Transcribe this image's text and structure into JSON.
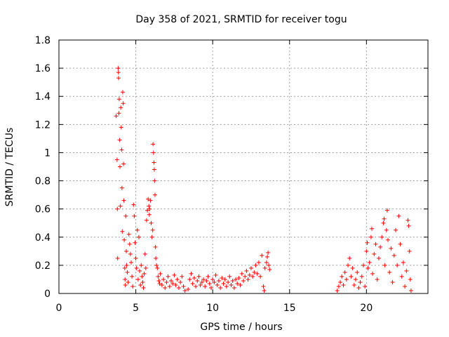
{
  "chart_data": {
    "type": "scatter",
    "title": "Day 358 of 2021, SRMTID for receiver togu",
    "xlabel": "GPS time / hours",
    "ylabel": "SRMTID / TECUs",
    "xlim": [
      0,
      24
    ],
    "ylim": [
      0,
      1.8
    ],
    "grid": true,
    "marker": "+",
    "color": "#ff0000",
    "x_ticks": [
      0,
      5,
      10,
      15,
      20
    ],
    "x_tick_labels": [
      "0",
      "5",
      "10",
      "15",
      "20"
    ],
    "y_ticks": [
      0,
      0.2,
      0.4,
      0.6,
      0.8,
      1.0,
      1.2,
      1.4,
      1.6,
      1.8
    ],
    "y_tick_labels": [
      "0",
      "0.2",
      "0.4",
      "0.6",
      "0.8",
      "1",
      "1.2",
      "1.4",
      "1.6",
      "1.8"
    ],
    "points": [
      [
        3.72,
        1.26
      ],
      [
        3.78,
        0.95
      ],
      [
        3.8,
        0.6
      ],
      [
        3.82,
        0.25
      ],
      [
        3.85,
        1.6
      ],
      [
        3.87,
        1.57
      ],
      [
        3.88,
        1.53
      ],
      [
        3.9,
        1.28
      ],
      [
        3.92,
        1.38
      ],
      [
        3.95,
        1.09
      ],
      [
        3.97,
        0.9
      ],
      [
        4.0,
        0.62
      ],
      [
        4.02,
        1.32
      ],
      [
        4.05,
        1.18
      ],
      [
        4.08,
        1.02
      ],
      [
        4.1,
        0.75
      ],
      [
        4.12,
        0.44
      ],
      [
        4.15,
        1.43
      ],
      [
        4.18,
        1.35
      ],
      [
        4.2,
        0.92
      ],
      [
        4.22,
        0.66
      ],
      [
        4.25,
        0.38
      ],
      [
        4.28,
        0.18
      ],
      [
        4.3,
        0.1
      ],
      [
        4.32,
        0.06
      ],
      [
        4.35,
        0.55
      ],
      [
        4.38,
        0.3
      ],
      [
        4.4,
        0.2
      ],
      [
        4.45,
        0.15
      ],
      [
        4.5,
        0.08
      ],
      [
        4.55,
        0.42
      ],
      [
        4.6,
        0.35
      ],
      [
        4.65,
        0.28
      ],
      [
        4.7,
        0.22
      ],
      [
        4.75,
        0.12
      ],
      [
        4.8,
        0.05
      ],
      [
        4.85,
        0.63
      ],
      [
        4.9,
        0.55
      ],
      [
        4.95,
        0.36
      ],
      [
        5.0,
        0.25
      ],
      [
        5.05,
        0.18
      ],
      [
        5.1,
        0.45
      ],
      [
        5.15,
        0.1
      ],
      [
        5.2,
        0.4
      ],
      [
        5.25,
        0.16
      ],
      [
        5.3,
        0.06
      ],
      [
        5.35,
        0.2
      ],
      [
        5.4,
        0.12
      ],
      [
        5.45,
        0.08
      ],
      [
        5.5,
        0.04
      ],
      [
        5.55,
        0.14
      ],
      [
        5.6,
        0.28
      ],
      [
        5.65,
        0.18
      ],
      [
        5.7,
        0.52
      ],
      [
        5.75,
        0.59
      ],
      [
        5.8,
        0.67
      ],
      [
        5.85,
        0.62
      ],
      [
        5.88,
        0.56
      ],
      [
        5.9,
        0.6
      ],
      [
        5.95,
        0.66
      ],
      [
        6.0,
        0.5
      ],
      [
        6.05,
        0.4
      ],
      [
        6.1,
        0.45
      ],
      [
        6.12,
        1.06
      ],
      [
        6.15,
        1.0
      ],
      [
        6.18,
        0.93
      ],
      [
        6.2,
        0.88
      ],
      [
        6.22,
        0.8
      ],
      [
        6.25,
        0.7
      ],
      [
        6.28,
        0.33
      ],
      [
        6.3,
        0.25
      ],
      [
        6.35,
        0.2
      ],
      [
        6.4,
        0.18
      ],
      [
        6.45,
        0.12
      ],
      [
        6.5,
        0.09
      ],
      [
        6.55,
        0.07
      ],
      [
        6.6,
        0.14
      ],
      [
        6.7,
        0.06
      ],
      [
        6.8,
        0.1
      ],
      [
        6.9,
        0.04
      ],
      [
        7.0,
        0.08
      ],
      [
        7.1,
        0.12
      ],
      [
        7.2,
        0.05
      ],
      [
        7.3,
        0.09
      ],
      [
        7.4,
        0.07
      ],
      [
        7.5,
        0.13
      ],
      [
        7.6,
        0.06
      ],
      [
        7.7,
        0.1
      ],
      [
        7.8,
        0.04
      ],
      [
        7.9,
        0.08
      ],
      [
        8.0,
        0.12
      ],
      [
        8.1,
        0.05
      ],
      [
        8.2,
        0.02
      ],
      [
        8.4,
        0.03
      ],
      [
        8.5,
        0.1
      ],
      [
        8.6,
        0.14
      ],
      [
        8.7,
        0.07
      ],
      [
        8.8,
        0.11
      ],
      [
        8.9,
        0.05
      ],
      [
        9.0,
        0.09
      ],
      [
        9.1,
        0.12
      ],
      [
        9.2,
        0.06
      ],
      [
        9.3,
        0.08
      ],
      [
        9.4,
        0.1
      ],
      [
        9.5,
        0.05
      ],
      [
        9.6,
        0.09
      ],
      [
        9.7,
        0.12
      ],
      [
        9.8,
        0.07
      ],
      [
        9.9,
        0.04
      ],
      [
        10.0,
        0.1
      ],
      [
        10.1,
        0.08
      ],
      [
        10.2,
        0.13
      ],
      [
        10.3,
        0.06
      ],
      [
        10.4,
        0.09
      ],
      [
        10.5,
        0.04
      ],
      [
        10.6,
        0.11
      ],
      [
        10.7,
        0.07
      ],
      [
        10.8,
        0.1
      ],
      [
        10.9,
        0.05
      ],
      [
        11.0,
        0.08
      ],
      [
        11.1,
        0.12
      ],
      [
        11.2,
        0.06
      ],
      [
        11.3,
        0.09
      ],
      [
        11.4,
        0.04
      ],
      [
        11.5,
        0.1
      ],
      [
        11.6,
        0.07
      ],
      [
        11.7,
        0.11
      ],
      [
        11.8,
        0.06
      ],
      [
        11.9,
        0.14
      ],
      [
        12.0,
        0.09
      ],
      [
        12.1,
        0.12
      ],
      [
        12.2,
        0.16
      ],
      [
        12.3,
        0.1
      ],
      [
        12.4,
        0.13
      ],
      [
        12.5,
        0.18
      ],
      [
        12.6,
        0.12
      ],
      [
        12.7,
        0.15
      ],
      [
        12.8,
        0.2
      ],
      [
        12.9,
        0.14
      ],
      [
        13.0,
        0.22
      ],
      [
        13.1,
        0.12
      ],
      [
        13.2,
        0.27
      ],
      [
        13.3,
        0.05
      ],
      [
        13.35,
        0.02
      ],
      [
        13.4,
        0.18
      ],
      [
        13.5,
        0.22
      ],
      [
        13.55,
        0.26
      ],
      [
        13.6,
        0.29
      ],
      [
        13.65,
        0.2
      ],
      [
        13.7,
        0.17
      ],
      [
        18.1,
        0.02
      ],
      [
        18.2,
        0.05
      ],
      [
        18.3,
        0.08
      ],
      [
        18.4,
        0.12
      ],
      [
        18.5,
        0.06
      ],
      [
        18.6,
        0.15
      ],
      [
        18.7,
        0.1
      ],
      [
        18.8,
        0.2
      ],
      [
        18.9,
        0.25
      ],
      [
        19.0,
        0.12
      ],
      [
        19.1,
        0.18
      ],
      [
        19.2,
        0.06
      ],
      [
        19.3,
        0.1
      ],
      [
        19.4,
        0.15
      ],
      [
        19.5,
        0.04
      ],
      [
        19.6,
        0.08
      ],
      [
        19.7,
        0.12
      ],
      [
        19.8,
        0.2
      ],
      [
        19.9,
        0.05
      ],
      [
        20.0,
        0.3
      ],
      [
        20.05,
        0.36
      ],
      [
        20.1,
        0.18
      ],
      [
        20.2,
        0.22
      ],
      [
        20.3,
        0.4
      ],
      [
        20.35,
        0.46
      ],
      [
        20.4,
        0.14
      ],
      [
        20.5,
        0.28
      ],
      [
        20.6,
        0.35
      ],
      [
        20.7,
        0.1
      ],
      [
        20.8,
        0.25
      ],
      [
        20.9,
        0.33
      ],
      [
        21.0,
        0.4
      ],
      [
        21.1,
        0.5
      ],
      [
        21.15,
        0.53
      ],
      [
        21.2,
        0.2
      ],
      [
        21.3,
        0.45
      ],
      [
        21.35,
        0.59
      ],
      [
        21.4,
        0.38
      ],
      [
        21.5,
        0.15
      ],
      [
        21.6,
        0.32
      ],
      [
        21.7,
        0.08
      ],
      [
        21.8,
        0.27
      ],
      [
        21.9,
        0.45
      ],
      [
        22.0,
        0.2
      ],
      [
        22.1,
        0.55
      ],
      [
        22.2,
        0.35
      ],
      [
        22.3,
        0.12
      ],
      [
        22.4,
        0.22
      ],
      [
        22.5,
        0.05
      ],
      [
        22.6,
        0.16
      ],
      [
        22.7,
        0.52
      ],
      [
        22.75,
        0.48
      ],
      [
        22.8,
        0.3
      ],
      [
        22.85,
        0.1
      ],
      [
        22.9,
        0.02
      ]
    ]
  }
}
